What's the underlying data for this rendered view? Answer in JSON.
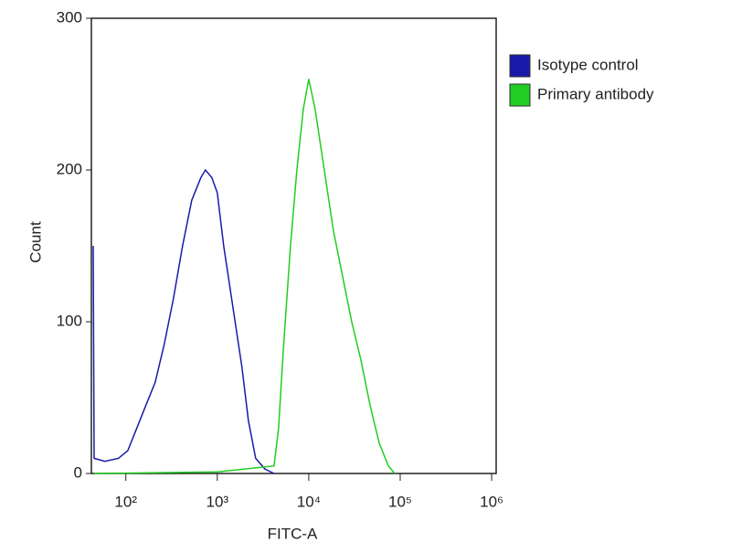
{
  "chart_data": {
    "type": "line",
    "x_label": "FITC-A",
    "y_label": "Count",
    "log_x": true,
    "legend": "right",
    "xlim": [
      42,
      1120000
    ],
    "ylim": [
      0,
      300
    ],
    "xticks": [
      {
        "value": 100,
        "label": "10²"
      },
      {
        "value": 1000,
        "label": "10³"
      },
      {
        "value": 10000,
        "label": "10⁴"
      },
      {
        "value": 100000,
        "label": "10⁵"
      },
      {
        "value": 1000000,
        "label": "10⁶"
      }
    ],
    "yticks": [
      0,
      100,
      200,
      300
    ],
    "series": [
      {
        "name": "Isotype control",
        "color": "#1a1aa8",
        "x": [
          44,
          45,
          59,
          83,
          105,
          132,
          166,
          209,
          263,
          331,
          417,
          525,
          661,
          741,
          871,
          1000,
          1175,
          1479,
          1862,
          2188,
          2630,
          3311,
          4169
        ],
        "values": [
          150,
          10,
          8,
          10,
          15,
          30,
          45,
          60,
          85,
          115,
          150,
          180,
          195,
          200,
          195,
          185,
          150,
          110,
          70,
          35,
          10,
          3,
          0
        ]
      },
      {
        "name": "Primary antibody",
        "color": "#22cc22",
        "x": [
          45,
          1000,
          4169,
          4677,
          5248,
          6310,
          7413,
          8710,
          10000,
          11749,
          14791,
          18621,
          23442,
          29512,
          37154,
          46774,
          58884,
          74131,
          87096
        ],
        "values": [
          0,
          1,
          5,
          30,
          80,
          150,
          200,
          240,
          260,
          240,
          200,
          160,
          130,
          100,
          75,
          45,
          20,
          5,
          0
        ]
      }
    ]
  }
}
